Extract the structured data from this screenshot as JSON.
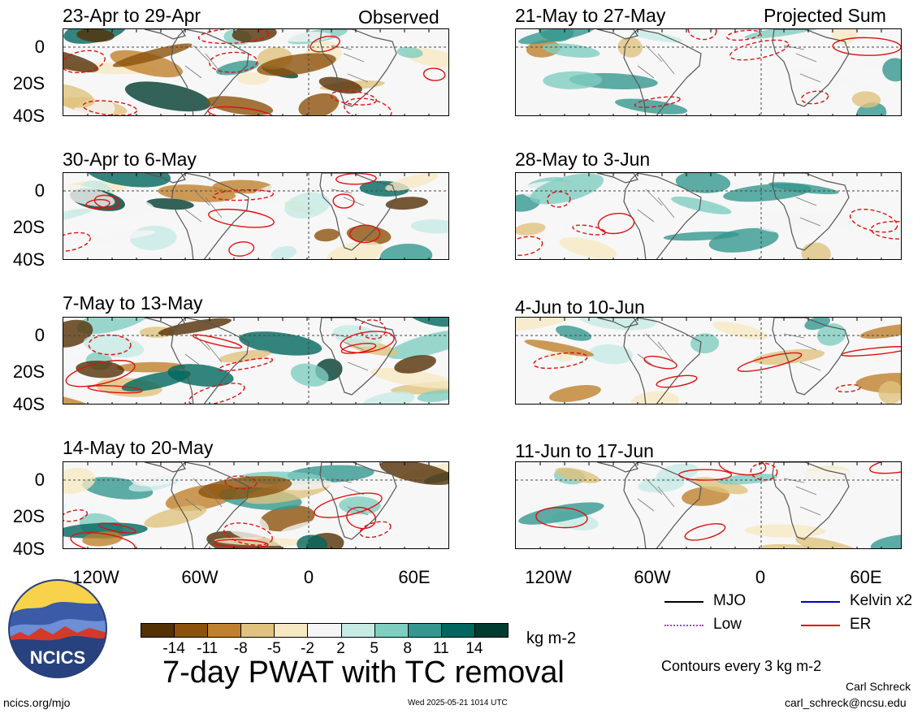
{
  "left_header": "Observed",
  "right_header": "Projected Sum",
  "panels_left": [
    {
      "title": "23-Apr to 29-Apr"
    },
    {
      "title": "30-Apr to 6-May"
    },
    {
      "title": "7-May to 13-May"
    },
    {
      "title": "14-May to 20-May"
    }
  ],
  "panels_right": [
    {
      "title": "21-May to 27-May"
    },
    {
      "title": "28-May to 3-Jun"
    },
    {
      "title": "4-Jun to 10-Jun"
    },
    {
      "title": "11-Jun to 17-Jun"
    }
  ],
  "lat_ticks": [
    "0",
    "20S",
    "40S"
  ],
  "lon_ticks": [
    "120W",
    "60W",
    "0",
    "60E"
  ],
  "colorbar": {
    "colors": [
      "#543005",
      "#8c510a",
      "#bf812d",
      "#dfc27d",
      "#f6e8c3",
      "#f5f5f5",
      "#c7eae5",
      "#80cdc1",
      "#35978f",
      "#01665e",
      "#003c30"
    ],
    "labels": [
      "-14",
      "-11",
      "-8",
      "-5",
      "-2",
      "2",
      "5",
      "8",
      "11",
      "14"
    ],
    "units": "kg m-2"
  },
  "legend": {
    "mjo": {
      "label": "MJO",
      "color": "#000000"
    },
    "kelvin": {
      "label": "Kelvin x2",
      "color": "#0000cc"
    },
    "low": {
      "label": "Low",
      "color": "#b040e0"
    },
    "er": {
      "label": "ER",
      "color": "#e01010"
    },
    "contour_note": "Contours every 3 kg m-2"
  },
  "title": "7-day PWAT with TC removal",
  "logo_text": "NCICS",
  "footer": {
    "left": "ncics.org/mjo",
    "center": "Wed 2025-05-21 1014 UTC",
    "author": "Carl Schreck",
    "email": "carl_schreck@ncsu.edu"
  }
}
